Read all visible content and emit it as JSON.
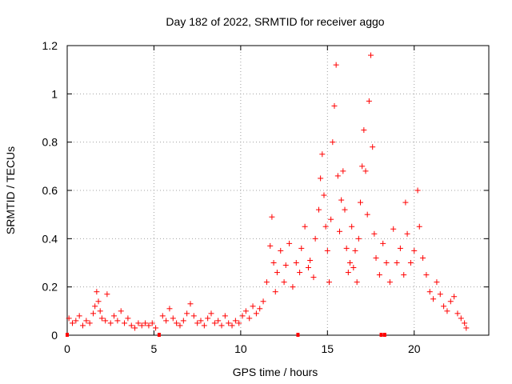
{
  "chart_data": {
    "type": "scatter",
    "title": "Day 182 of 2022, SRMTID for receiver aggo",
    "xlabel": "GPS time / hours",
    "ylabel": "SRMTID / TECUs",
    "xlim": [
      0,
      24.3
    ],
    "ylim": [
      0,
      1.2
    ],
    "grid": true,
    "x_ticks": [
      0,
      5,
      10,
      15,
      20
    ],
    "y_ticks": [
      0,
      0.2,
      0.4,
      0.6,
      0.8,
      1,
      1.2
    ],
    "x_tick_labels": [
      "0",
      "5",
      "10",
      "15",
      "20"
    ],
    "y_tick_labels": [
      "0",
      "0.2",
      "0.4",
      "0.6",
      "0.8",
      "1",
      "1.2"
    ],
    "marker": "+",
    "color": "#ff0000",
    "series": [
      {
        "name": "SRMTID",
        "points": [
          [
            0.1,
            0.07
          ],
          [
            0.3,
            0.05
          ],
          [
            0.5,
            0.06
          ],
          [
            0.7,
            0.08
          ],
          [
            0.9,
            0.04
          ],
          [
            1.1,
            0.06
          ],
          [
            1.3,
            0.05
          ],
          [
            1.5,
            0.09
          ],
          [
            1.6,
            0.12
          ],
          [
            1.7,
            0.18
          ],
          [
            1.8,
            0.14
          ],
          [
            1.9,
            0.1
          ],
          [
            2.0,
            0.07
          ],
          [
            2.2,
            0.06
          ],
          [
            2.3,
            0.17
          ],
          [
            2.5,
            0.05
          ],
          [
            2.7,
            0.08
          ],
          [
            2.9,
            0.06
          ],
          [
            3.1,
            0.1
          ],
          [
            3.3,
            0.05
          ],
          [
            3.5,
            0.07
          ],
          [
            3.7,
            0.04
          ],
          [
            3.9,
            0.03
          ],
          [
            4.1,
            0.05
          ],
          [
            4.3,
            0.04
          ],
          [
            4.5,
            0.05
          ],
          [
            4.7,
            0.04
          ],
          [
            4.9,
            0.05
          ],
          [
            5.1,
            0.03
          ],
          [
            5.5,
            0.08
          ],
          [
            5.7,
            0.06
          ],
          [
            5.9,
            0.11
          ],
          [
            6.1,
            0.07
          ],
          [
            6.3,
            0.05
          ],
          [
            6.5,
            0.04
          ],
          [
            6.7,
            0.06
          ],
          [
            6.9,
            0.09
          ],
          [
            7.1,
            0.13
          ],
          [
            7.3,
            0.08
          ],
          [
            7.5,
            0.05
          ],
          [
            7.7,
            0.06
          ],
          [
            7.9,
            0.04
          ],
          [
            8.1,
            0.07
          ],
          [
            8.3,
            0.09
          ],
          [
            8.5,
            0.05
          ],
          [
            8.7,
            0.06
          ],
          [
            8.9,
            0.04
          ],
          [
            9.1,
            0.08
          ],
          [
            9.3,
            0.05
          ],
          [
            9.5,
            0.04
          ],
          [
            9.7,
            0.06
          ],
          [
            9.9,
            0.05
          ],
          [
            10.1,
            0.08
          ],
          [
            10.3,
            0.1
          ],
          [
            10.5,
            0.07
          ],
          [
            10.7,
            0.12
          ],
          [
            10.9,
            0.09
          ],
          [
            11.1,
            0.11
          ],
          [
            11.3,
            0.14
          ],
          [
            11.5,
            0.22
          ],
          [
            11.7,
            0.37
          ],
          [
            11.8,
            0.49
          ],
          [
            11.9,
            0.3
          ],
          [
            12.0,
            0.18
          ],
          [
            12.1,
            0.26
          ],
          [
            12.3,
            0.35
          ],
          [
            12.5,
            0.22
          ],
          [
            12.6,
            0.29
          ],
          [
            12.8,
            0.38
          ],
          [
            13.0,
            0.2
          ],
          [
            13.2,
            0.3
          ],
          [
            13.4,
            0.26
          ],
          [
            13.5,
            0.36
          ],
          [
            13.7,
            0.45
          ],
          [
            13.9,
            0.28
          ],
          [
            14.0,
            0.31
          ],
          [
            14.2,
            0.24
          ],
          [
            14.3,
            0.4
          ],
          [
            14.5,
            0.52
          ],
          [
            14.6,
            0.65
          ],
          [
            14.7,
            0.75
          ],
          [
            14.8,
            0.58
          ],
          [
            14.9,
            0.45
          ],
          [
            15.0,
            0.35
          ],
          [
            15.1,
            0.22
          ],
          [
            15.2,
            0.48
          ],
          [
            15.3,
            0.8
          ],
          [
            15.4,
            0.95
          ],
          [
            15.5,
            1.12
          ],
          [
            15.6,
            0.66
          ],
          [
            15.7,
            0.43
          ],
          [
            15.8,
            0.56
          ],
          [
            15.9,
            0.68
          ],
          [
            16.0,
            0.52
          ],
          [
            16.1,
            0.36
          ],
          [
            16.2,
            0.26
          ],
          [
            16.3,
            0.3
          ],
          [
            16.4,
            0.45
          ],
          [
            16.5,
            0.28
          ],
          [
            16.6,
            0.35
          ],
          [
            16.7,
            0.22
          ],
          [
            16.8,
            0.4
          ],
          [
            16.9,
            0.55
          ],
          [
            17.0,
            0.7
          ],
          [
            17.1,
            0.85
          ],
          [
            17.2,
            0.68
          ],
          [
            17.3,
            0.5
          ],
          [
            17.4,
            0.97
          ],
          [
            17.5,
            1.16
          ],
          [
            17.6,
            0.78
          ],
          [
            17.7,
            0.42
          ],
          [
            17.8,
            0.32
          ],
          [
            18.0,
            0.25
          ],
          [
            18.2,
            0.38
          ],
          [
            18.4,
            0.3
          ],
          [
            18.6,
            0.22
          ],
          [
            18.8,
            0.44
          ],
          [
            19.0,
            0.3
          ],
          [
            19.2,
            0.36
          ],
          [
            19.4,
            0.25
          ],
          [
            19.5,
            0.55
          ],
          [
            19.6,
            0.42
          ],
          [
            19.8,
            0.3
          ],
          [
            20.0,
            0.35
          ],
          [
            20.2,
            0.6
          ],
          [
            20.3,
            0.45
          ],
          [
            20.5,
            0.32
          ],
          [
            20.7,
            0.25
          ],
          [
            20.9,
            0.18
          ],
          [
            21.1,
            0.15
          ],
          [
            21.3,
            0.22
          ],
          [
            21.5,
            0.17
          ],
          [
            21.7,
            0.12
          ],
          [
            21.9,
            0.1
          ],
          [
            22.1,
            0.14
          ],
          [
            22.3,
            0.16
          ],
          [
            22.5,
            0.09
          ],
          [
            22.7,
            0.07
          ],
          [
            22.9,
            0.05
          ],
          [
            23.0,
            0.03
          ],
          [
            0.0,
            0.0
          ],
          [
            5.3,
            0.0
          ],
          [
            13.3,
            0.0
          ],
          [
            18.1,
            0.0
          ],
          [
            18.3,
            0.0
          ]
        ]
      }
    ]
  }
}
